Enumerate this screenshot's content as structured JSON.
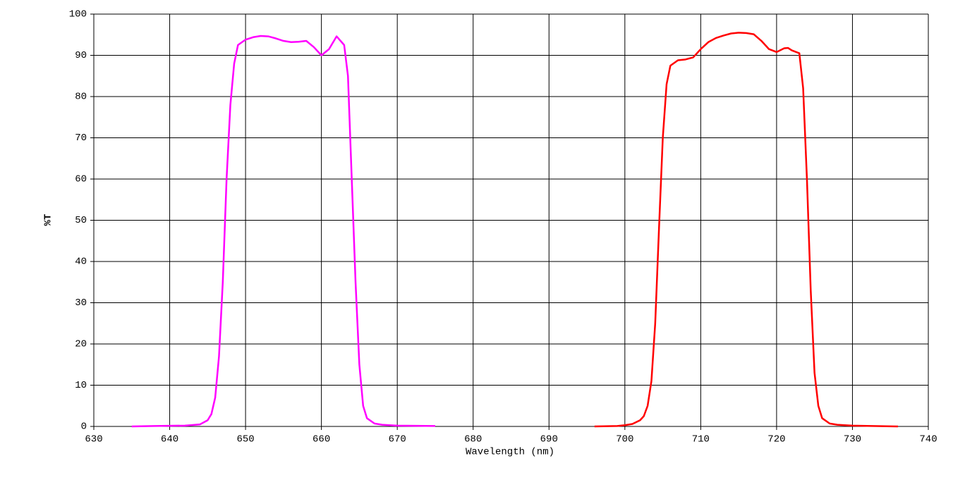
{
  "chart_data": {
    "type": "line",
    "xlabel": "Wavelength (nm)",
    "ylabel": "%T",
    "xlim": [
      630,
      740
    ],
    "xticks": [
      630,
      640,
      650,
      660,
      670,
      680,
      690,
      700,
      710,
      720,
      730,
      740
    ],
    "ylim": [
      0,
      100
    ],
    "yticks": [
      0,
      10,
      20,
      30,
      40,
      50,
      60,
      70,
      80,
      90,
      100
    ],
    "grid": true,
    "series": [
      {
        "color": "#ff00ff",
        "x": [
          635,
          638,
          642,
          644,
          645,
          645.5,
          646,
          646.5,
          647,
          647.5,
          648,
          648.5,
          649,
          650,
          651,
          652,
          653,
          654,
          655,
          656,
          657,
          658,
          659,
          660,
          661,
          662,
          663,
          663.5,
          664,
          664.5,
          665,
          665.5,
          666,
          667,
          668,
          670,
          675
        ],
        "values": [
          0,
          0.1,
          0.2,
          0.5,
          1.5,
          3,
          7,
          17,
          35,
          60,
          78,
          88,
          92.5,
          93.8,
          94.4,
          94.7,
          94.6,
          94.1,
          93.5,
          93.2,
          93.3,
          93.5,
          92,
          90,
          91.5,
          94.6,
          92.5,
          85,
          60,
          35,
          15,
          5,
          2,
          0.7,
          0.4,
          0.2,
          0.1
        ]
      },
      {
        "color": "#ff0000",
        "x": [
          696,
          699,
          700,
          701,
          702,
          702.5,
          703,
          703.5,
          704,
          704.5,
          705,
          705.5,
          706,
          707,
          708,
          709,
          710,
          711,
          712,
          713,
          714,
          715,
          716,
          717,
          718,
          719,
          720,
          721,
          721.5,
          722,
          723,
          723.5,
          724,
          724.5,
          725,
          725.5,
          726,
          727,
          728,
          730,
          736
        ],
        "values": [
          0,
          0.1,
          0.3,
          0.6,
          1.5,
          2.5,
          5,
          11,
          25,
          48,
          70,
          83,
          87.5,
          88.8,
          89,
          89.5,
          91.5,
          93.2,
          94.2,
          94.8,
          95.3,
          95.5,
          95.4,
          95.1,
          93.5,
          91.5,
          90.8,
          91.7,
          91.8,
          91.2,
          90.5,
          82,
          60,
          33,
          13,
          5,
          2,
          0.7,
          0.4,
          0.2,
          0
        ]
      }
    ]
  }
}
